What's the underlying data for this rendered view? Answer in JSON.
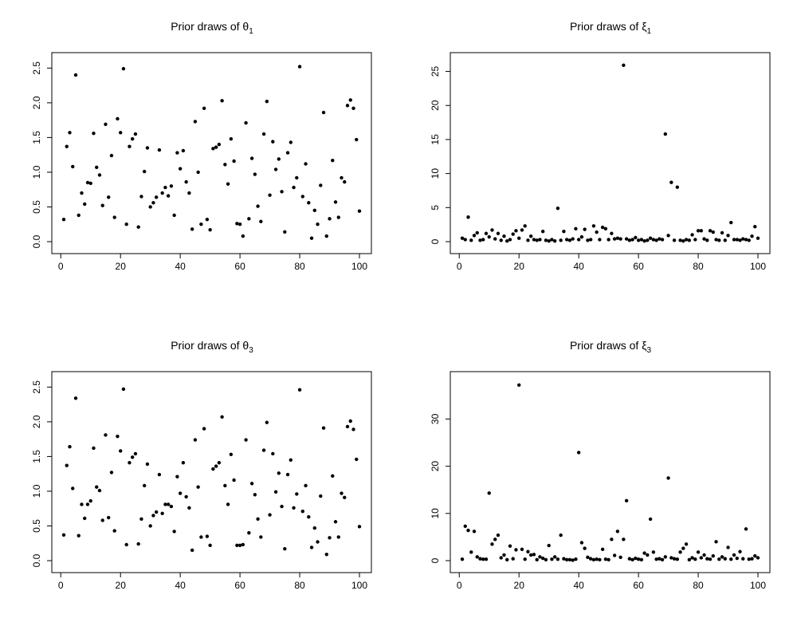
{
  "chart_data": [
    {
      "type": "scatter",
      "title": "Prior draws of θ",
      "title_sub": "1",
      "xlim": [
        1,
        100
      ],
      "ylim": [
        0,
        2.55
      ],
      "xticks": [
        0,
        20,
        40,
        60,
        80,
        100
      ],
      "yticks": [
        0.0,
        0.5,
        1.0,
        1.5,
        2.0,
        2.5
      ],
      "xtick_labels": [
        "0",
        "20",
        "40",
        "60",
        "80",
        "100"
      ],
      "ytick_labels": [
        "0.0",
        "0.5",
        "1.0",
        "1.5",
        "2.0",
        "2.5"
      ],
      "values": [
        0.32,
        1.37,
        1.57,
        1.08,
        2.4,
        0.38,
        0.7,
        0.54,
        0.85,
        0.84,
        1.56,
        1.07,
        0.96,
        0.52,
        1.69,
        0.64,
        1.24,
        0.35,
        1.77,
        1.57,
        2.49,
        0.25,
        1.37,
        1.48,
        1.55,
        0.21,
        0.65,
        1.01,
        1.35,
        0.5,
        0.56,
        0.64,
        1.32,
        0.7,
        0.78,
        0.66,
        0.8,
        0.38,
        1.28,
        1.05,
        1.31,
        0.86,
        0.7,
        0.18,
        1.73,
        1.0,
        0.25,
        1.92,
        0.32,
        0.17,
        1.34,
        1.36,
        1.4,
        2.03,
        1.11,
        0.83,
        1.48,
        1.16,
        0.26,
        0.25,
        0.08,
        1.71,
        0.33,
        1.2,
        0.97,
        0.51,
        0.29,
        1.55,
        2.02,
        0.67,
        1.44,
        1.04,
        1.19,
        0.72,
        0.14,
        1.28,
        1.43,
        0.78,
        0.92,
        2.52,
        0.65,
        1.12,
        0.56,
        0.05,
        0.45,
        0.25,
        0.81,
        1.86,
        0.08,
        0.33,
        1.17,
        0.57,
        0.35,
        0.92,
        0.86,
        1.96,
        2.04,
        1.92,
        1.47,
        0.44
      ]
    },
    {
      "type": "scatter",
      "title": "Prior draws of ξ",
      "title_sub": "1",
      "xlim": [
        1,
        100
      ],
      "ylim": [
        0,
        26
      ],
      "xticks": [
        0,
        20,
        40,
        60,
        80,
        100
      ],
      "yticks": [
        0,
        5,
        10,
        15,
        20,
        25
      ],
      "xtick_labels": [
        "0",
        "20",
        "40",
        "60",
        "80",
        "100"
      ],
      "ytick_labels": [
        "0",
        "5",
        "10",
        "15",
        "20",
        "25"
      ],
      "values": [
        0.5,
        0.3,
        3.6,
        0.2,
        0.9,
        1.3,
        0.2,
        0.3,
        1.2,
        0.7,
        1.7,
        0.4,
        1.2,
        0.2,
        0.8,
        0.1,
        0.3,
        1.1,
        1.6,
        0.5,
        1.7,
        2.3,
        0.2,
        0.8,
        0.3,
        0.2,
        0.3,
        1.5,
        0.2,
        0.1,
        0.3,
        0.1,
        4.9,
        0.2,
        1.5,
        0.3,
        0.2,
        0.4,
        1.9,
        0.3,
        0.7,
        1.8,
        0.2,
        0.3,
        2.3,
        1.4,
        0.3,
        2.1,
        1.9,
        0.3,
        1.2,
        0.4,
        0.5,
        0.4,
        25.9,
        0.4,
        0.2,
        0.3,
        0.6,
        0.2,
        0.3,
        0.1,
        0.2,
        0.5,
        0.3,
        0.2,
        0.4,
        0.3,
        15.8,
        0.9,
        8.7,
        0.2,
        8.0,
        0.2,
        0.1,
        0.3,
        0.2,
        1.0,
        0.3,
        1.6,
        1.6,
        0.4,
        0.2,
        1.6,
        1.4,
        0.3,
        0.2,
        1.3,
        0.2,
        0.9,
        2.8,
        0.3,
        0.3,
        0.2,
        0.4,
        0.3,
        0.2,
        0.8,
        2.2,
        0.5
      ]
    },
    {
      "type": "scatter",
      "title": "Prior draws of θ",
      "title_sub": "3",
      "xlim": [
        1,
        100
      ],
      "ylim": [
        0,
        2.55
      ],
      "xticks": [
        0,
        20,
        40,
        60,
        80,
        100
      ],
      "yticks": [
        0.0,
        0.5,
        1.0,
        1.5,
        2.0,
        2.5
      ],
      "xtick_labels": [
        "0",
        "20",
        "40",
        "60",
        "80",
        "100"
      ],
      "ytick_labels": [
        "0.0",
        "0.5",
        "1.0",
        "1.5",
        "2.0",
        "2.5"
      ],
      "values": [
        0.37,
        1.37,
        1.64,
        1.04,
        2.34,
        0.36,
        0.81,
        0.61,
        0.81,
        0.86,
        1.62,
        1.06,
        1.01,
        0.58,
        1.81,
        0.62,
        1.27,
        0.43,
        1.79,
        1.58,
        2.47,
        0.23,
        1.41,
        1.49,
        1.54,
        0.24,
        0.6,
        1.08,
        1.39,
        0.5,
        0.65,
        0.7,
        1.24,
        0.68,
        0.81,
        0.81,
        0.78,
        0.42,
        1.21,
        0.97,
        1.41,
        0.92,
        0.76,
        0.15,
        1.74,
        1.06,
        0.34,
        1.9,
        0.35,
        0.22,
        1.32,
        1.36,
        1.41,
        2.07,
        1.08,
        0.81,
        1.53,
        1.16,
        0.22,
        0.22,
        0.23,
        1.74,
        0.4,
        1.11,
        0.95,
        0.6,
        0.34,
        1.59,
        1.99,
        0.66,
        1.54,
        0.99,
        1.26,
        0.78,
        0.17,
        1.24,
        1.45,
        0.76,
        0.96,
        2.46,
        0.71,
        1.08,
        0.63,
        0.19,
        0.47,
        0.27,
        0.93,
        1.91,
        0.09,
        0.33,
        1.22,
        0.56,
        0.34,
        0.97,
        0.91,
        1.93,
        2.01,
        1.89,
        1.46,
        0.49
      ]
    },
    {
      "type": "scatter",
      "title": "Prior draws of ξ",
      "title_sub": "3",
      "xlim": [
        1,
        100
      ],
      "ylim": [
        0,
        37.5
      ],
      "xticks": [
        0,
        20,
        40,
        60,
        80,
        100
      ],
      "yticks": [
        0,
        10,
        20,
        30
      ],
      "xtick_labels": [
        "0",
        "20",
        "40",
        "60",
        "80",
        "100"
      ],
      "ytick_labels": [
        "0",
        "10",
        "20",
        "30"
      ],
      "values": [
        0.3,
        7.3,
        6.4,
        1.8,
        6.2,
        0.8,
        0.4,
        0.3,
        0.3,
        14.3,
        3.5,
        4.5,
        5.4,
        0.6,
        1.2,
        0.2,
        3.1,
        0.4,
        2.3,
        37.2,
        2.4,
        0.3,
        1.9,
        1.2,
        1.3,
        0.2,
        0.8,
        0.5,
        0.2,
        3.2,
        0.3,
        0.8,
        0.3,
        5.4,
        0.4,
        0.2,
        0.2,
        0.1,
        0.3,
        22.9,
        3.8,
        2.6,
        0.7,
        0.4,
        0.2,
        0.3,
        0.2,
        2.4,
        0.3,
        0.2,
        4.5,
        1.1,
        6.2,
        0.7,
        4.5,
        12.7,
        0.4,
        0.2,
        0.5,
        0.3,
        0.2,
        1.6,
        1.2,
        8.8,
        1.8,
        0.3,
        0.4,
        0.2,
        0.8,
        17.5,
        0.6,
        0.4,
        0.3,
        1.8,
        2.6,
        3.5,
        0.2,
        0.6,
        0.3,
        1.8,
        0.6,
        1.2,
        0.4,
        0.3,
        1.0,
        4.0,
        0.3,
        0.8,
        0.4,
        2.8,
        0.3,
        1.2,
        0.5,
        1.9,
        0.4,
        6.7,
        0.3,
        0.4,
        1.0,
        0.6
      ]
    }
  ]
}
